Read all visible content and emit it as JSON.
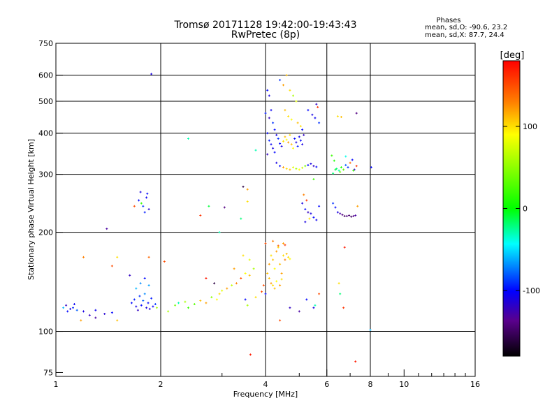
{
  "chart_data": {
    "type": "scatter",
    "title": "Tromsø 20171128 19:42:00-19:43:43",
    "subtitle": "RwPretec (8p)",
    "xlabel": "Frequency [MHz]",
    "ylabel": "Stationary phase Virtual Height [km]",
    "x_scale": "log",
    "y_scale": "log",
    "xlim": [
      1,
      16
    ],
    "ylim": [
      73,
      750
    ],
    "x_ticks": [
      1,
      2,
      4,
      6,
      8,
      10,
      16
    ],
    "x_minor_ticks": [
      3,
      5,
      7,
      9,
      11,
      12,
      13,
      14,
      15
    ],
    "y_ticks": [
      75,
      100,
      200,
      300,
      400,
      500,
      600,
      750
    ],
    "x_grid": [
      2,
      4,
      6,
      8
    ],
    "y_grid": [
      100,
      200,
      300,
      400,
      500,
      600
    ],
    "grid": true,
    "stats": {
      "heading": "Phases",
      "line1": "mean, sd,O: -90.6, 23.2",
      "line2": "mean, sd,X:  87.7, 24.4"
    },
    "colorbar": {
      "label": "[deg]",
      "range": [
        -180,
        180
      ],
      "ticks": [
        "100",
        "0",
        "-100"
      ],
      "tick_values": [
        100,
        0,
        -100
      ]
    },
    "series": [
      {
        "points": [
          [
            1.08,
            115,
            -100
          ],
          [
            1.1,
            117,
            -110
          ],
          [
            1.12,
            118,
            -95
          ],
          [
            1.07,
            120,
            -120
          ],
          [
            1.13,
            121,
            -105
          ],
          [
            1.05,
            118,
            -60
          ],
          [
            1.15,
            116,
            -80
          ],
          [
            1.2,
            115,
            -110
          ],
          [
            1.25,
            112,
            -120
          ],
          [
            1.3,
            116,
            -105
          ],
          [
            1.38,
            113,
            -115
          ],
          [
            1.45,
            114,
            -100
          ],
          [
            1.18,
            108,
            120
          ],
          [
            1.3,
            110,
            -130
          ],
          [
            1.5,
            108,
            110
          ],
          [
            1.65,
            122,
            -100
          ],
          [
            1.68,
            125,
            -95
          ],
          [
            1.7,
            119,
            -110
          ],
          [
            1.72,
            116,
            -120
          ],
          [
            1.74,
            128,
            -90
          ],
          [
            1.76,
            120,
            -100
          ],
          [
            1.78,
            124,
            -80
          ],
          [
            1.8,
            130,
            -70
          ],
          [
            1.82,
            118,
            -110
          ],
          [
            1.84,
            122,
            -100
          ],
          [
            1.86,
            117,
            -115
          ],
          [
            1.88,
            126,
            -95
          ],
          [
            1.9,
            119,
            -105
          ],
          [
            1.93,
            121,
            -90
          ],
          [
            1.7,
            135,
            -60
          ],
          [
            1.75,
            140,
            -70
          ],
          [
            1.85,
            138,
            -65
          ],
          [
            1.63,
            148,
            -120
          ],
          [
            1.8,
            145,
            -100
          ],
          [
            1.95,
            118,
            60
          ],
          [
            1.73,
            250,
            -100
          ],
          [
            1.75,
            265,
            -110
          ],
          [
            1.78,
            240,
            -90
          ],
          [
            1.8,
            230,
            -95
          ],
          [
            1.82,
            255,
            -105
          ],
          [
            1.85,
            235,
            -115
          ],
          [
            1.76,
            245,
            20
          ],
          [
            1.83,
            262,
            -100
          ],
          [
            1.68,
            240,
            150
          ],
          [
            1.88,
            605,
            -110
          ],
          [
            1.4,
            205,
            -130
          ],
          [
            1.2,
            168,
            130
          ],
          [
            1.45,
            158,
            150
          ],
          [
            1.5,
            168,
            100
          ],
          [
            1.85,
            168,
            140
          ],
          [
            2.05,
            163,
            150
          ],
          [
            2.1,
            115,
            60
          ],
          [
            2.2,
            120,
            40
          ],
          [
            2.25,
            122,
            -30
          ],
          [
            2.35,
            123,
            60
          ],
          [
            2.4,
            118,
            20
          ],
          [
            2.5,
            121,
            30
          ],
          [
            2.6,
            124,
            110
          ],
          [
            2.7,
            122,
            120
          ],
          [
            2.8,
            127,
            50
          ],
          [
            2.9,
            125,
            90
          ],
          [
            2.95,
            130,
            100
          ],
          [
            3.0,
            133,
            80
          ],
          [
            3.1,
            135,
            120
          ],
          [
            3.2,
            138,
            70
          ],
          [
            3.3,
            140,
            130
          ],
          [
            3.4,
            145,
            150
          ],
          [
            3.5,
            150,
            90
          ],
          [
            3.6,
            148,
            110
          ],
          [
            3.7,
            155,
            60
          ],
          [
            2.7,
            145,
            170
          ],
          [
            2.85,
            140,
            -160
          ],
          [
            3.25,
            155,
            120
          ],
          [
            3.45,
            170,
            100
          ],
          [
            3.6,
            165,
            80
          ],
          [
            3.9,
            132,
            150
          ],
          [
            3.75,
            127,
            100
          ],
          [
            3.5,
            125,
            -100
          ],
          [
            3.55,
            120,
            60
          ],
          [
            2.4,
            385,
            -30
          ],
          [
            2.6,
            225,
            160
          ],
          [
            2.75,
            240,
            -10
          ],
          [
            2.95,
            200,
            -30
          ],
          [
            3.05,
            238,
            -140
          ],
          [
            3.45,
            275,
            -160
          ],
          [
            3.55,
            270,
            120
          ],
          [
            3.55,
            248,
            100
          ],
          [
            3.4,
            220,
            -20
          ],
          [
            3.75,
            355,
            -30
          ],
          [
            3.62,
            85,
            170
          ],
          [
            4.05,
            540,
            -100
          ],
          [
            4.1,
            520,
            -110
          ],
          [
            4.0,
            460,
            -95
          ],
          [
            4.15,
            470,
            -105
          ],
          [
            4.1,
            445,
            -120
          ],
          [
            4.2,
            430,
            -90
          ],
          [
            4.25,
            410,
            -100
          ],
          [
            4.3,
            395,
            -110
          ],
          [
            4.05,
            400,
            -100
          ],
          [
            4.1,
            380,
            -95
          ],
          [
            4.15,
            370,
            -105
          ],
          [
            4.2,
            360,
            -110
          ],
          [
            4.25,
            350,
            -100
          ],
          [
            4.05,
            345,
            -120
          ],
          [
            4.35,
            385,
            -90
          ],
          [
            4.4,
            372,
            -100
          ],
          [
            4.45,
            365,
            -110
          ],
          [
            4.5,
            378,
            100
          ],
          [
            4.55,
            390,
            110
          ],
          [
            4.6,
            382,
            90
          ],
          [
            4.65,
            375,
            120
          ],
          [
            4.7,
            395,
            100
          ],
          [
            4.75,
            370,
            110
          ],
          [
            4.8,
            360,
            90
          ],
          [
            4.85,
            385,
            -100
          ],
          [
            4.9,
            375,
            -110
          ],
          [
            4.95,
            365,
            -95
          ],
          [
            5.0,
            390,
            -105
          ],
          [
            5.05,
            380,
            -100
          ],
          [
            5.1,
            370,
            -110
          ],
          [
            5.15,
            395,
            -120
          ],
          [
            4.4,
            580,
            -90
          ],
          [
            4.5,
            560,
            120
          ],
          [
            4.6,
            600,
            110
          ],
          [
            4.7,
            540,
            100
          ],
          [
            4.8,
            520,
            60
          ],
          [
            4.9,
            500,
            80
          ],
          [
            4.55,
            470,
            110
          ],
          [
            4.65,
            450,
            100
          ],
          [
            4.75,
            440,
            90
          ],
          [
            4.95,
            430,
            110
          ],
          [
            5.05,
            420,
            100
          ],
          [
            5.1,
            410,
            -100
          ],
          [
            4.3,
            325,
            -110
          ],
          [
            4.4,
            318,
            -100
          ],
          [
            4.5,
            315,
            120
          ],
          [
            4.6,
            312,
            100
          ],
          [
            4.7,
            310,
            110
          ],
          [
            4.8,
            315,
            80
          ],
          [
            4.9,
            312,
            60
          ],
          [
            5.0,
            310,
            90
          ],
          [
            5.1,
            314,
            70
          ],
          [
            5.2,
            318,
            40
          ],
          [
            5.3,
            320,
            -100
          ],
          [
            5.4,
            323,
            -110
          ],
          [
            5.5,
            318,
            -120
          ],
          [
            5.6,
            316,
            -100
          ],
          [
            5.45,
            455,
            -110
          ],
          [
            5.55,
            445,
            -105
          ],
          [
            5.6,
            490,
            -120
          ],
          [
            5.65,
            480,
            160
          ],
          [
            5.7,
            430,
            -90
          ],
          [
            5.3,
            470,
            -100
          ],
          [
            5.1,
            245,
            -110
          ],
          [
            5.2,
            235,
            -100
          ],
          [
            5.3,
            230,
            -120
          ],
          [
            5.4,
            228,
            -110
          ],
          [
            5.5,
            222,
            -100
          ],
          [
            5.6,
            218,
            -105
          ],
          [
            5.2,
            215,
            -110
          ],
          [
            5.35,
            220,
            100
          ],
          [
            5.25,
            250,
            160
          ],
          [
            5.15,
            260,
            130
          ],
          [
            5.7,
            240,
            -100
          ],
          [
            5.5,
            290,
            20
          ],
          [
            4.05,
            150,
            110
          ],
          [
            4.1,
            160,
            120
          ],
          [
            4.15,
            170,
            100
          ],
          [
            4.2,
            165,
            110
          ],
          [
            4.25,
            155,
            90
          ],
          [
            4.3,
            175,
            120
          ],
          [
            4.35,
            180,
            100
          ],
          [
            4.4,
            160,
            110
          ],
          [
            4.45,
            150,
            120
          ],
          [
            4.5,
            170,
            100
          ],
          [
            4.55,
            165,
            130
          ],
          [
            4.6,
            172,
            110
          ],
          [
            4.65,
            168,
            100
          ],
          [
            4.7,
            166,
            90
          ],
          [
            4.1,
            145,
            110
          ],
          [
            4.15,
            140,
            120
          ],
          [
            4.2,
            138,
            100
          ],
          [
            4.25,
            135,
            110
          ],
          [
            4.3,
            142,
            90
          ],
          [
            4.4,
            138,
            120
          ],
          [
            4.45,
            144,
            100
          ],
          [
            4.0,
            185,
            150
          ],
          [
            4.2,
            188,
            130
          ],
          [
            4.35,
            182,
            140
          ],
          [
            4.55,
            183,
            160
          ],
          [
            4.0,
            130,
            -100
          ],
          [
            3.95,
            138,
            150
          ],
          [
            4.4,
            108,
            150
          ],
          [
            4.5,
            185,
            120
          ],
          [
            4.7,
            118,
            -120
          ],
          [
            5.0,
            115,
            -130
          ],
          [
            5.25,
            125,
            -100
          ],
          [
            5.5,
            118,
            -110
          ],
          [
            5.55,
            120,
            -30
          ],
          [
            5.7,
            130,
            150
          ],
          [
            6.2,
            342,
            20
          ],
          [
            6.3,
            330,
            10
          ],
          [
            6.4,
            312,
            -20
          ],
          [
            6.5,
            308,
            -30
          ],
          [
            6.6,
            315,
            10
          ],
          [
            6.7,
            310,
            30
          ],
          [
            6.8,
            320,
            -80
          ],
          [
            6.9,
            315,
            -90
          ],
          [
            7.0,
            325,
            140
          ],
          [
            7.1,
            332,
            -100
          ],
          [
            7.2,
            310,
            -120
          ],
          [
            7.3,
            318,
            160
          ],
          [
            6.25,
            302,
            -20
          ],
          [
            6.55,
            305,
            40
          ],
          [
            8.05,
            315,
            -100
          ],
          [
            6.25,
            245,
            -90
          ],
          [
            6.35,
            238,
            -100
          ],
          [
            6.45,
            230,
            -110
          ],
          [
            6.55,
            228,
            -130
          ],
          [
            6.65,
            226,
            -140
          ],
          [
            6.75,
            224,
            -150
          ],
          [
            6.85,
            224,
            -140
          ],
          [
            6.95,
            225,
            -145
          ],
          [
            7.05,
            223,
            -150
          ],
          [
            7.15,
            224,
            -140
          ],
          [
            7.25,
            225,
            -130
          ],
          [
            7.3,
            460,
            -140
          ],
          [
            6.45,
            450,
            100
          ],
          [
            6.6,
            448,
            110
          ],
          [
            6.75,
            180,
            170
          ],
          [
            6.5,
            140,
            100
          ],
          [
            6.55,
            130,
            -20
          ],
          [
            6.7,
            118,
            160
          ],
          [
            7.25,
            81,
            170
          ],
          [
            7.35,
            240,
            120
          ],
          [
            8.0,
            101,
            -60
          ],
          [
            6.8,
            340,
            -40
          ],
          [
            7.15,
            308,
            20
          ],
          [
            6.35,
            310,
            -10
          ]
        ]
      }
    ]
  }
}
